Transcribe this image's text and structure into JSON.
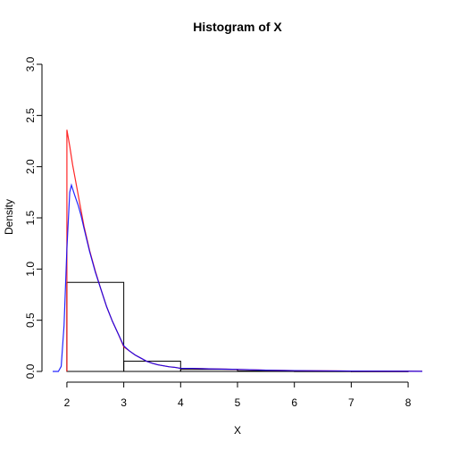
{
  "chart_data": {
    "type": "histogram",
    "title": "Histogram of X",
    "xlabel": "X",
    "ylabel": "Density",
    "xlim": [
      1.75,
      8.25
    ],
    "ylim": [
      0,
      3.0
    ],
    "x_ticks": [
      "2",
      "3",
      "4",
      "5",
      "6",
      "7",
      "8"
    ],
    "y_ticks": [
      "0.0",
      "0.5",
      "1.0",
      "1.5",
      "2.0",
      "2.5",
      "3.0"
    ],
    "bins": [
      {
        "from": 2,
        "to": 3,
        "density": 0.87
      },
      {
        "from": 3,
        "to": 4,
        "density": 0.1
      },
      {
        "from": 4,
        "to": 5,
        "density": 0.02
      },
      {
        "from": 5,
        "to": 6,
        "density": 0.005
      },
      {
        "from": 6,
        "to": 7,
        "density": 0.003
      },
      {
        "from": 7,
        "to": 8,
        "density": 0.002
      }
    ],
    "series": [
      {
        "color": "#ff0000",
        "points": [
          [
            2.0,
            0.0
          ],
          [
            2.0,
            2.36
          ],
          [
            2.05,
            2.2
          ],
          [
            2.1,
            2.02
          ],
          [
            2.15,
            1.87
          ],
          [
            2.2,
            1.72
          ],
          [
            2.25,
            1.57
          ],
          [
            2.3,
            1.42
          ],
          [
            2.4,
            1.18
          ],
          [
            2.5,
            0.98
          ],
          [
            2.6,
            0.8
          ],
          [
            2.7,
            0.63
          ],
          [
            2.8,
            0.49
          ],
          [
            2.9,
            0.37
          ],
          [
            3.0,
            0.24
          ],
          [
            3.1,
            0.2
          ],
          [
            3.2,
            0.16
          ],
          [
            3.3,
            0.13
          ],
          [
            3.4,
            0.1
          ],
          [
            3.5,
            0.08
          ],
          [
            3.6,
            0.065
          ],
          [
            3.7,
            0.055
          ],
          [
            3.8,
            0.045
          ],
          [
            3.9,
            0.04
          ],
          [
            4.0,
            0.03
          ],
          [
            4.2,
            0.03
          ],
          [
            4.5,
            0.025
          ],
          [
            5.0,
            0.02
          ],
          [
            5.5,
            0.012
          ],
          [
            6.0,
            0.008
          ],
          [
            7.0,
            0.004
          ],
          [
            8.0,
            0.002
          ],
          [
            8.25,
            0.001
          ]
        ]
      },
      {
        "color": "#0000ff",
        "points": [
          [
            1.75,
            0.0
          ],
          [
            1.85,
            0.0
          ],
          [
            1.9,
            0.05
          ],
          [
            1.95,
            0.45
          ],
          [
            2.0,
            1.2
          ],
          [
            2.05,
            1.75
          ],
          [
            2.08,
            1.82
          ],
          [
            2.12,
            1.75
          ],
          [
            2.15,
            1.7
          ],
          [
            2.2,
            1.62
          ],
          [
            2.25,
            1.52
          ],
          [
            2.3,
            1.4
          ],
          [
            2.4,
            1.17
          ],
          [
            2.5,
            0.97
          ],
          [
            2.6,
            0.8
          ],
          [
            2.7,
            0.63
          ],
          [
            2.8,
            0.49
          ],
          [
            2.9,
            0.37
          ],
          [
            3.0,
            0.25
          ],
          [
            3.1,
            0.2
          ],
          [
            3.2,
            0.16
          ],
          [
            3.3,
            0.13
          ],
          [
            3.4,
            0.1
          ],
          [
            3.5,
            0.08
          ],
          [
            3.6,
            0.065
          ],
          [
            3.7,
            0.055
          ],
          [
            3.8,
            0.045
          ],
          [
            3.9,
            0.04
          ],
          [
            4.0,
            0.03
          ],
          [
            4.2,
            0.03
          ],
          [
            4.5,
            0.025
          ],
          [
            5.0,
            0.02
          ],
          [
            5.5,
            0.012
          ],
          [
            6.0,
            0.008
          ],
          [
            7.0,
            0.004
          ],
          [
            8.0,
            0.002
          ],
          [
            8.25,
            0.001
          ]
        ]
      }
    ],
    "grid": false
  }
}
